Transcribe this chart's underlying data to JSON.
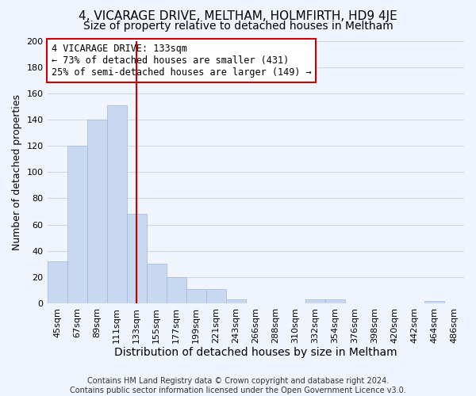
{
  "title": "4, VICARAGE DRIVE, MELTHAM, HOLMFIRTH, HD9 4JE",
  "subtitle": "Size of property relative to detached houses in Meltham",
  "xlabel": "Distribution of detached houses by size in Meltham",
  "ylabel": "Number of detached properties",
  "categories": [
    "45sqm",
    "67sqm",
    "89sqm",
    "111sqm",
    "133sqm",
    "155sqm",
    "177sqm",
    "199sqm",
    "221sqm",
    "243sqm",
    "266sqm",
    "288sqm",
    "310sqm",
    "332sqm",
    "354sqm",
    "376sqm",
    "398sqm",
    "420sqm",
    "442sqm",
    "464sqm",
    "486sqm"
  ],
  "values": [
    32,
    120,
    140,
    151,
    68,
    30,
    20,
    11,
    11,
    3,
    0,
    0,
    0,
    3,
    3,
    0,
    0,
    0,
    0,
    2,
    0
  ],
  "bar_color": "#c8d8f0",
  "bar_edge_color": "#a0b8d8",
  "vline_x_index": 4,
  "vline_color": "#cc0000",
  "annotation_line1": "4 VICARAGE DRIVE: 133sqm",
  "annotation_line2": "← 73% of detached houses are smaller (431)",
  "annotation_line3": "25% of semi-detached houses are larger (149) →",
  "annotation_box_facecolor": "#ffffff",
  "annotation_box_edgecolor": "#cc0000",
  "ylim": [
    0,
    200
  ],
  "yticks": [
    0,
    20,
    40,
    60,
    80,
    100,
    120,
    140,
    160,
    180,
    200
  ],
  "grid_color": "#d0d8e8",
  "background_color": "#f0f4fc",
  "footer_line1": "Contains HM Land Registry data © Crown copyright and database right 2024.",
  "footer_line2": "Contains public sector information licensed under the Open Government Licence v3.0.",
  "title_fontsize": 11,
  "subtitle_fontsize": 10,
  "xlabel_fontsize": 10,
  "ylabel_fontsize": 9,
  "tick_fontsize": 8,
  "annotation_fontsize": 8.5,
  "footer_fontsize": 7
}
